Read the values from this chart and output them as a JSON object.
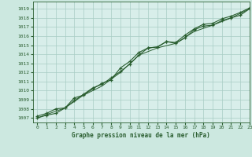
{
  "xlabel": "Graphe pression niveau de la mer (hPa)",
  "bg_color": "#cce8e0",
  "plot_bg": "#d8eeea",
  "grid_color": "#a8ccc4",
  "line_color": "#2a5e30",
  "xlim": [
    -0.5,
    23
  ],
  "ylim": [
    1006.5,
    1019.8
  ],
  "yticks": [
    1007,
    1008,
    1009,
    1010,
    1011,
    1012,
    1013,
    1014,
    1015,
    1016,
    1017,
    1018,
    1019
  ],
  "xticks": [
    0,
    1,
    2,
    3,
    4,
    5,
    6,
    7,
    8,
    9,
    10,
    11,
    12,
    13,
    14,
    15,
    16,
    17,
    18,
    19,
    20,
    21,
    22,
    23
  ],
  "s1": [
    1007.2,
    1007.5,
    1008.0,
    1008.1,
    1009.2,
    1009.5,
    1010.2,
    1010.8,
    1011.2,
    1012.5,
    1013.2,
    1014.2,
    1014.7,
    1014.8,
    1015.4,
    1015.2,
    1015.8,
    1016.7,
    1017.1,
    1017.2,
    1017.7,
    1018.0,
    1018.3,
    1019.0
  ],
  "s2": [
    1007.0,
    1007.3,
    1007.5,
    1008.1,
    1008.9,
    1009.6,
    1010.3,
    1010.7,
    1011.4,
    1012.1,
    1012.9,
    1013.9,
    1014.7,
    1014.8,
    1015.4,
    1015.3,
    1016.1,
    1016.8,
    1017.3,
    1017.4,
    1017.9,
    1018.2,
    1018.6,
    1019.1
  ],
  "s3_x": [
    0,
    3,
    5,
    7,
    9,
    11,
    13,
    15,
    17,
    19,
    21,
    23
  ],
  "s3_y": [
    1007.0,
    1008.1,
    1009.5,
    1010.5,
    1012.0,
    1013.9,
    1014.7,
    1015.2,
    1016.5,
    1017.2,
    1018.0,
    1019.0
  ]
}
